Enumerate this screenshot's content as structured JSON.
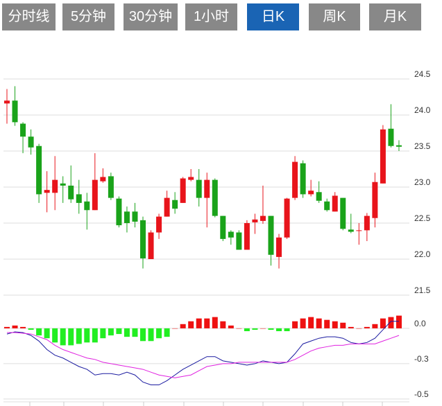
{
  "tabs": [
    "分时线",
    "5分钟",
    "30分钟",
    "1小时",
    "日K",
    "周K",
    "月K"
  ],
  "active_tab": 4,
  "chart_data": [
    {
      "type": "candlestick",
      "up_color": "#e8141b",
      "down_color": "#1aa31a",
      "ylim": [
        21.5,
        25.0
      ],
      "yticks": [
        {
          "value": 21.5,
          "label": "21.5"
        },
        {
          "value": 22,
          "label": "22.0"
        },
        22.5,
        {
          "value": 23,
          "label": "23.0"
        },
        23.5,
        {
          "value": 24,
          "label": "24.0"
        },
        24.5
      ],
      "grid": true,
      "open": [
        24.16,
        24.2,
        23.88,
        23.7,
        23.57,
        22.92,
        22.92,
        23.05,
        23.02,
        22.9,
        22.8,
        22.68,
        23.08,
        23.15,
        22.84,
        22.66,
        22.66,
        22.54,
        22.0,
        22.37,
        22.59,
        22.82,
        22.78,
        23.1,
        23.1,
        22.85,
        23.1,
        22.6,
        22.38,
        22.37,
        22.13,
        22.51,
        22.53,
        22.6,
        22.03,
        22.3,
        22.85,
        23.33,
        22.9,
        22.93,
        22.8,
        22.66,
        22.85,
        22.41,
        22.39,
        22.4,
        22.57,
        23.05,
        23.81,
        23.58
      ],
      "high": [
        24.36,
        24.4,
        23.9,
        23.8,
        23.6,
        23.22,
        23.43,
        23.15,
        23.3,
        23.1,
        22.92,
        23.47,
        23.26,
        23.2,
        22.87,
        22.73,
        22.78,
        22.59,
        22.4,
        22.63,
        22.95,
        22.93,
        23.14,
        23.25,
        23.25,
        23.2,
        23.12,
        22.6,
        22.4,
        22.4,
        22.54,
        22.63,
        23.02,
        22.6,
        22.35,
        22.85,
        23.43,
        23.37,
        23.1,
        23.08,
        22.84,
        22.93,
        22.85,
        22.63,
        22.5,
        22.64,
        23.2,
        23.86,
        24.15,
        23.65
      ],
      "low": [
        23.88,
        23.85,
        23.47,
        23.45,
        22.78,
        22.65,
        22.68,
        22.78,
        22.78,
        22.63,
        22.41,
        22.68,
        23.06,
        22.82,
        22.44,
        22.37,
        22.44,
        21.87,
        22.0,
        22.28,
        22.59,
        22.63,
        22.78,
        23.08,
        22.73,
        22.44,
        22.58,
        22.25,
        22.2,
        22.13,
        22.13,
        22.35,
        22.49,
        21.91,
        21.87,
        22.28,
        22.82,
        22.85,
        22.87,
        22.78,
        22.66,
        22.66,
        22.4,
        22.36,
        22.2,
        22.25,
        22.44,
        23.05,
        23.55,
        23.5
      ],
      "close": [
        24.2,
        23.9,
        23.7,
        23.55,
        22.9,
        22.96,
        23.1,
        23.02,
        22.83,
        22.78,
        22.68,
        23.1,
        23.14,
        22.85,
        22.47,
        22.5,
        22.52,
        22.01,
        22.37,
        22.59,
        22.85,
        22.7,
        23.12,
        23.14,
        22.85,
        23.1,
        22.6,
        22.28,
        22.3,
        22.13,
        22.5,
        22.55,
        22.6,
        22.06,
        22.3,
        22.84,
        23.35,
        22.9,
        22.95,
        22.81,
        22.68,
        22.88,
        22.42,
        22.38,
        22.4,
        22.6,
        23.07,
        23.8,
        23.57,
        23.56
      ]
    },
    {
      "type": "macd",
      "pos_color": "#ee1111",
      "neg_color": "#22ee22",
      "ylim": [
        -0.52,
        0.23
      ],
      "yticks": [
        -0.5,
        {
          "value": -0.25,
          "label": "-0.3"
        },
        {
          "value": 0,
          "label": "0.0"
        }
      ],
      "histogram": [
        0.01,
        0.02,
        0.01,
        -0.01,
        -0.05,
        -0.07,
        -0.1,
        -0.12,
        -0.12,
        -0.11,
        -0.1,
        -0.1,
        -0.07,
        -0.05,
        -0.04,
        -0.06,
        -0.06,
        -0.09,
        -0.09,
        -0.07,
        -0.06,
        0.0,
        0.03,
        0.05,
        0.07,
        0.07,
        0.08,
        0.05,
        0.02,
        0.0,
        -0.02,
        -0.01,
        0.0,
        -0.01,
        -0.02,
        -0.02,
        0.05,
        0.07,
        0.08,
        0.07,
        0.06,
        0.05,
        0.04,
        0.01,
        0.0,
        0.01,
        0.03,
        0.07,
        0.08,
        0.09
      ],
      "lines": [
        {
          "color": "#1a1aa0",
          "values": [
            -0.04,
            -0.025,
            -0.03,
            -0.05,
            -0.09,
            -0.15,
            -0.19,
            -0.21,
            -0.24,
            -0.27,
            -0.29,
            -0.33,
            -0.32,
            -0.32,
            -0.33,
            -0.31,
            -0.33,
            -0.38,
            -0.4,
            -0.4,
            -0.37,
            -0.33,
            -0.29,
            -0.26,
            -0.23,
            -0.2,
            -0.2,
            -0.23,
            -0.24,
            -0.25,
            -0.26,
            -0.25,
            -0.23,
            -0.24,
            -0.25,
            -0.24,
            -0.18,
            -0.11,
            -0.09,
            -0.07,
            -0.06,
            -0.06,
            -0.07,
            -0.1,
            -0.11,
            -0.1,
            -0.07,
            -0.01,
            0.05,
            0.05
          ]
        },
        {
          "color": "#e020e0",
          "values": [
            -0.03,
            -0.03,
            -0.035,
            -0.04,
            -0.06,
            -0.08,
            -0.12,
            -0.15,
            -0.17,
            -0.19,
            -0.21,
            -0.22,
            -0.24,
            -0.25,
            -0.26,
            -0.27,
            -0.28,
            -0.29,
            -0.31,
            -0.33,
            -0.34,
            -0.35,
            -0.34,
            -0.33,
            -0.3,
            -0.27,
            -0.26,
            -0.25,
            -0.25,
            -0.24,
            -0.24,
            -0.24,
            -0.24,
            -0.24,
            -0.24,
            -0.24,
            -0.22,
            -0.19,
            -0.16,
            -0.14,
            -0.13,
            -0.12,
            -0.12,
            -0.11,
            -0.11,
            -0.11,
            -0.11,
            -0.09,
            -0.07,
            -0.05
          ]
        }
      ]
    }
  ]
}
